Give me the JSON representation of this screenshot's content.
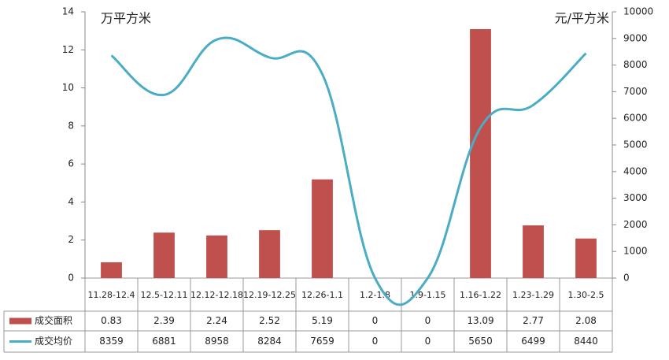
{
  "chart_data": {
    "type": "bar_line",
    "y_label": "万平方米",
    "y2_label": "元/平方米",
    "categories": [
      "11.28-12.4",
      "12.5-12.11",
      "12.12-12.18",
      "12.19-12.25",
      "12.26-1.1",
      "1.2-1.8",
      "1.9-1.15",
      "1.16-1.22",
      "1.23-1.29",
      "1.30-2.5"
    ],
    "series": [
      {
        "name": "成交面积",
        "type": "bar",
        "color": "#c0504d",
        "values": [
          0.83,
          2.39,
          2.24,
          2.52,
          5.19,
          0,
          0,
          13.09,
          2.77,
          2.08
        ]
      },
      {
        "name": "成交均价",
        "type": "line",
        "axis": "y2",
        "color": "#4bacc6",
        "values": [
          8359,
          6881,
          8958,
          8284,
          7659,
          0,
          0,
          5650,
          6499,
          8440
        ]
      }
    ],
    "ylim": [
      0,
      14
    ],
    "yticks": [
      0,
      2,
      4,
      6,
      8,
      10,
      12,
      14
    ],
    "y2lim": [
      0,
      10000
    ],
    "y2ticks": [
      0,
      1000,
      2000,
      3000,
      4000,
      5000,
      6000,
      7000,
      8000,
      9000,
      10000
    ],
    "grid": false
  }
}
